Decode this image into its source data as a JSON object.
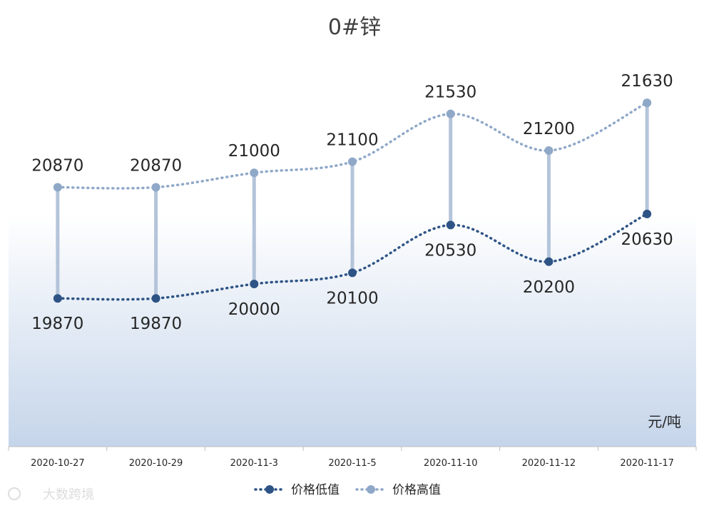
{
  "chart_data": {
    "type": "line",
    "title": "0#锌",
    "unit_label": "元/吨",
    "categories": [
      "2020-10-27",
      "2020-10-29",
      "2020-11-3",
      "2020-11-5",
      "2020-11-10",
      "2020-11-12",
      "2020-11-17"
    ],
    "series": [
      {
        "name": "价格低值",
        "values": [
          19870,
          19870,
          20000,
          20100,
          20530,
          20200,
          20630
        ],
        "color": "#2e5486",
        "label_position": "below"
      },
      {
        "name": "价格高值",
        "values": [
          20870,
          20870,
          21000,
          21100,
          21530,
          21200,
          21630
        ],
        "color": "#8fa8c8",
        "label_position": "above"
      }
    ],
    "high_low_lines": true,
    "high_low_color": "#b4c4da",
    "smooth": true,
    "line_style": "dotted",
    "ylim": [
      18600,
      22400
    ],
    "legend_position": "bottom",
    "background_gradient": [
      "#ffffff",
      "#c5d5ea"
    ],
    "watermark": "大数跨境"
  }
}
